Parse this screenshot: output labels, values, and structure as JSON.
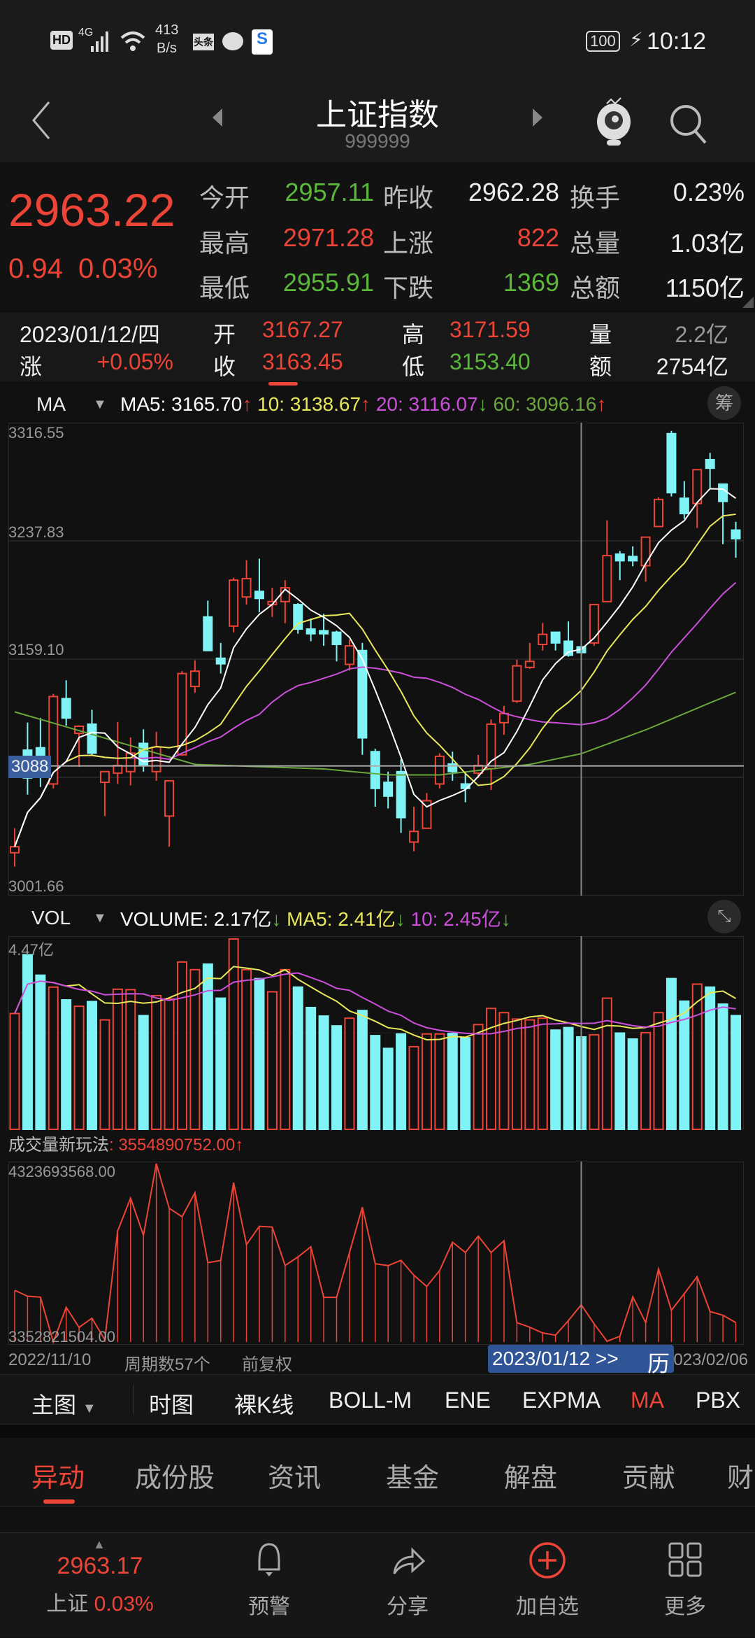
{
  "status_bar": {
    "hd": "HD",
    "network": "4G",
    "speed_value": "413",
    "speed_unit": "B/s",
    "news_app": "头条",
    "battery": "100",
    "time": "10:12"
  },
  "header": {
    "title": "上证指数",
    "code": "999999"
  },
  "quote": {
    "price": "2963.22",
    "change": "0.94",
    "change_pct": "0.03%",
    "rows": [
      [
        {
          "label": "今开",
          "value": "2957.11",
          "color": "green"
        },
        {
          "label": "昨收",
          "value": "2962.28",
          "color": "white"
        },
        {
          "label": "换手",
          "value": "0.23%",
          "color": "white"
        }
      ],
      [
        {
          "label": "最高",
          "value": "2971.28",
          "color": "red"
        },
        {
          "label": "上涨",
          "value": "822",
          "color": "red"
        },
        {
          "label": "总量",
          "value": "1.03亿",
          "color": "white"
        }
      ],
      [
        {
          "label": "最低",
          "value": "2955.91",
          "color": "green"
        },
        {
          "label": "下跌",
          "value": "1369",
          "color": "green"
        },
        {
          "label": "总额",
          "value": "1150亿",
          "color": "white"
        }
      ]
    ]
  },
  "candle_info": {
    "date": "2023/01/12/四",
    "rise_label": "涨",
    "rise": "+0.05%",
    "open_label": "开",
    "open": "3167.27",
    "close_label": "收",
    "close": "3163.45",
    "high_label": "高",
    "high": "3171.59",
    "low_label": "低",
    "low": "3153.40",
    "vol_label": "量",
    "vol": "2.2亿",
    "amt_label": "额",
    "amt": "2754亿"
  },
  "ma_legend": {
    "name": "MA",
    "ma5": "MA5: 3165.70",
    "ma5_arrow": "↑",
    "ma10": "10: 3138.67",
    "ma10_arrow": "↑",
    "ma20": "20: 3116.07",
    "ma20_arrow": "↓",
    "ma60": "60: 3096.16",
    "ma60_arrow": "↑",
    "chip_button": "筹"
  },
  "vol_legend": {
    "name": "VOL",
    "volume": "VOLUME: 2.17亿",
    "volume_arrow": "↓",
    "ma5": "MA5: 2.41亿",
    "ma5_arrow": "↓",
    "ma10": "10: 2.45亿",
    "ma10_arrow": "↓"
  },
  "indicator_panel": {
    "title": "成交量新玩法",
    "value": ": 3554890752.00",
    "arrow": "↑"
  },
  "date_row": {
    "start": "2022/11/10",
    "periods": "周期数57个",
    "adjust": "前复权",
    "cursor_date": "2023/01/12 >>",
    "history": "历",
    "end": "2023/02/06"
  },
  "indicator_tabs": {
    "main": "主图",
    "items": [
      "时图",
      "裸K线",
      "BOLL-M",
      "ENE",
      "EXPMA",
      "MA",
      "PBX"
    ],
    "active": "MA"
  },
  "tabs": {
    "items": [
      "异动",
      "成份股",
      "资讯",
      "基金",
      "解盘",
      "贡献",
      "财"
    ],
    "active": "异动"
  },
  "bottom_bar": {
    "price": "2963.17",
    "name": "上证",
    "pct": "0.03%",
    "alert": "预警",
    "share": "分享",
    "add": "加自选",
    "more": "更多"
  },
  "colors": {
    "up": "#ec4436",
    "down": "#7ff3f5",
    "ma5": "#ffffff",
    "ma10": "#e8e85a",
    "ma20": "#cc4fdc",
    "ma60": "#6aa63a",
    "accent": "#ec4436"
  },
  "chart_data": [
    {
      "type": "candlestick",
      "title": "K线 MA",
      "y_ticks": [
        "3316.55",
        "3237.83",
        "3159.10",
        "3088",
        "3001.66"
      ],
      "ylim": [
        3001.66,
        3316.55
      ],
      "crosshair_index": 44,
      "crosshair_price": 3088,
      "ohlc": [
        [
          3030.2,
          3046.5,
          3021,
          3034.2
        ],
        [
          3098.5,
          3116.9,
          3068.9,
          3080
        ],
        [
          3100.1,
          3119.9,
          3074,
          3086.2
        ],
        [
          3076,
          3136,
          3073,
          3134.2
        ],
        [
          3132.8,
          3145,
          3114.8,
          3119.9
        ],
        [
          3109.7,
          3115,
          3087.3,
          3114.4
        ],
        [
          3115.8,
          3125.4,
          3095,
          3096.5
        ],
        [
          3077.1,
          3084.5,
          3054.6,
          3084.2
        ],
        [
          3083.2,
          3117.3,
          3076,
          3088.3
        ],
        [
          3084.2,
          3107,
          3075,
          3096.5
        ],
        [
          3103,
          3112.4,
          3084.2,
          3088.7
        ],
        [
          3084.2,
          3110.7,
          3078.1,
          3100.5
        ],
        [
          3054.6,
          3078.1,
          3034.2,
          3078.1
        ],
        [
          3095.4,
          3151.1,
          3095,
          3149.5
        ],
        [
          3140.9,
          3158.3,
          3136.8,
          3151.1
        ],
        [
          3187.2,
          3198,
          3164.5,
          3164.8
        ],
        [
          3159.7,
          3169.9,
          3149.5,
          3156
        ],
        [
          3181.1,
          3213.3,
          3177,
          3211.7
        ],
        [
          3200.5,
          3225,
          3195.4,
          3212.7
        ],
        [
          3204.2,
          3226,
          3190.3,
          3199.5
        ],
        [
          3195.4,
          3206.6,
          3187.2,
          3197.4
        ],
        [
          3197.4,
          3211.7,
          3183,
          3206.6
        ],
        [
          3195.4,
          3196.4,
          3176,
          3179.1
        ],
        [
          3179.1,
          3186.2,
          3171,
          3176
        ],
        [
          3178,
          3189.3,
          3168,
          3176
        ],
        [
          3177,
          3178,
          3157.6,
          3168.9
        ],
        [
          3155.6,
          3172,
          3151.5,
          3167.9
        ],
        [
          3164.8,
          3169.9,
          3095.4,
          3106.7
        ],
        [
          3097.5,
          3099.5,
          3060.8,
          3073
        ],
        [
          3077.1,
          3084.2,
          3059.7,
          3067.9
        ],
        [
          3084.2,
          3092.4,
          3043.4,
          3053.6
        ],
        [
          3037.3,
          3060.8,
          3031.2,
          3044.4
        ],
        [
          3046.5,
          3070,
          3046,
          3064.8
        ],
        [
          3076,
          3096.4,
          3073,
          3094.4
        ],
        [
          3089.3,
          3097.5,
          3078.1,
          3084.2
        ],
        [
          3076,
          3084.2,
          3063.8,
          3073
        ],
        [
          3083.2,
          3095.4,
          3080,
          3088.3
        ],
        [
          3086.2,
          3118.9,
          3072,
          3115.8
        ],
        [
          3116.8,
          3128,
          3108.7,
          3122.9
        ],
        [
          3131.1,
          3158.7,
          3130,
          3154.6
        ],
        [
          3153.6,
          3169.9,
          3152.6,
          3157.6
        ],
        [
          3168.9,
          3183.2,
          3164.8,
          3175.6
        ],
        [
          3177,
          3177,
          3164.8,
          3169.9
        ],
        [
          3171,
          3184.2,
          3160.7,
          3161.7
        ],
        [
          3167.27,
          3171.59,
          3153.4,
          3163.45
        ],
        [
          3169.9,
          3195.4,
          3167.9,
          3195.4
        ],
        [
          3197.4,
          3251.5,
          3197.4,
          3228
        ],
        [
          3229,
          3231.1,
          3211.7,
          3224.6
        ],
        [
          3227.4,
          3234.2,
          3220.9,
          3224.6
        ],
        [
          3221.3,
          3240.3,
          3210.7,
          3240.3
        ],
        [
          3247.4,
          3266.8,
          3247.4,
          3265.4
        ],
        [
          3309.2,
          3311.1,
          3267.4,
          3269.9
        ],
        [
          3266.2,
          3277.6,
          3252.5,
          3256
        ],
        [
          3262.7,
          3285.2,
          3246.4,
          3285.2
        ],
        [
          3291.9,
          3296.4,
          3272.9,
          3286.2
        ],
        [
          3275.6,
          3275.6,
          3235.6,
          3264.1
        ],
        [
          3245,
          3250.5,
          3226.6,
          3239.3
        ]
      ],
      "ma60_keypoints": [
        [
          0,
          3124
        ],
        [
          14,
          3089
        ],
        [
          24,
          3086
        ],
        [
          29,
          3082
        ],
        [
          33,
          3082
        ],
        [
          40,
          3089
        ],
        [
          44,
          3096.16
        ],
        [
          49,
          3112
        ],
        [
          54,
          3130
        ],
        [
          56,
          3137
        ]
      ]
    },
    {
      "type": "bar",
      "title": "VOL",
      "unit": "亿",
      "y_max_label": "4.47亿",
      "ylim": [
        0,
        4.47
      ],
      "values": [
        2.72,
        4.1,
        3.62,
        3.34,
        3.04,
        2.89,
        3.0,
        2.57,
        3.29,
        3.28,
        2.67,
        3.14,
        3.06,
        3.93,
        3.75,
        3.88,
        3.08,
        4.47,
        3.75,
        3.54,
        3.23,
        3.75,
        3.34,
        2.86,
        2.66,
        2.43,
        2.61,
        2.79,
        2.2,
        1.9,
        2.24,
        1.94,
        2.24,
        2.24,
        2.25,
        2.15,
        2.46,
        2.84,
        2.74,
        2.59,
        2.57,
        2.61,
        2.33,
        2.39,
        2.17,
        2.22,
        3.08,
        2.26,
        2.12,
        2.27,
        2.74,
        3.54,
        3.01,
        3.41,
        3.34,
        2.94,
        2.67
      ]
    },
    {
      "type": "line",
      "title": "成交量新玩法",
      "unit": "1e8",
      "y_ticks": [
        "4323693568.00",
        "3352821504.00"
      ],
      "ylim": [
        33.528,
        43.237
      ],
      "values": [
        36.33,
        36.01,
        35.96,
        33.53,
        35.41,
        34.32,
        34.82,
        33.65,
        39.55,
        41.33,
        39.31,
        43.2,
        40.78,
        40.32,
        41.62,
        37.83,
        37.95,
        42.17,
        38.81,
        39.8,
        39.76,
        37.68,
        38.14,
        38.69,
        35.95,
        35.95,
        38.38,
        40.84,
        37.77,
        37.67,
        37.96,
        37.15,
        36.54,
        37.4,
        38.94,
        38.38,
        39.27,
        38.38,
        39.02,
        34.58,
        34.33,
        34.02,
        33.9,
        34.69,
        35.55,
        34.51,
        33.57,
        33.84,
        35.98,
        34.58,
        37.49,
        35.25,
        36.15,
        37.07,
        35.18,
        34.98,
        34.58
      ]
    }
  ]
}
